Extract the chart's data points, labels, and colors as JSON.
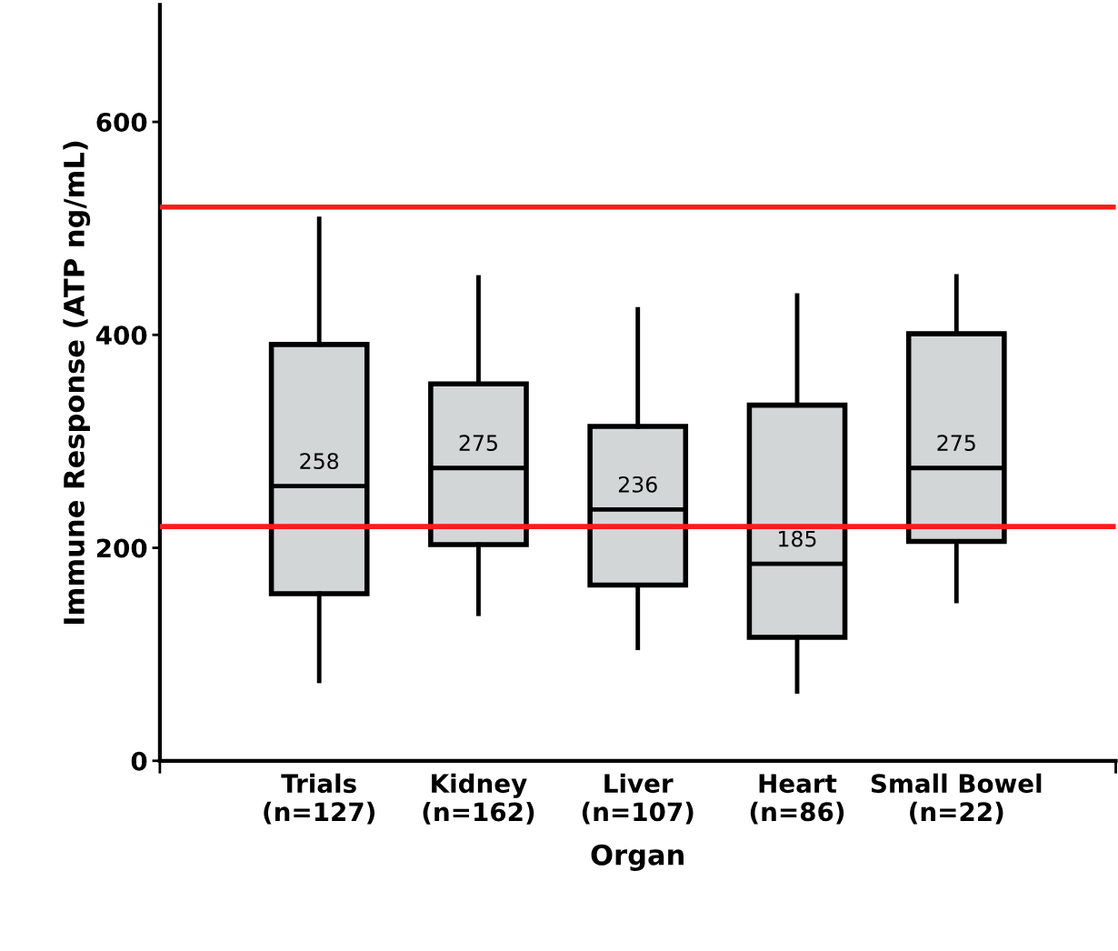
{
  "chart_data": {
    "type": "box",
    "xlabel": "Organ",
    "ylabel": "Immune Response (ATP ng/mL)",
    "categories": [
      "Trials\n(n=127)",
      "Kidney\n(n=162)",
      "Liver\n(n=107)",
      "Heart\n(n=86)",
      "Small Bowel\n(n=22)"
    ],
    "boxes": [
      {
        "low": 75,
        "q1": 157,
        "median": 258,
        "q3": 391,
        "high": 509
      },
      {
        "low": 138,
        "q1": 203,
        "median": 275,
        "q3": 354,
        "high": 454
      },
      {
        "low": 106,
        "q1": 165,
        "median": 236,
        "q3": 314,
        "high": 424
      },
      {
        "low": 65,
        "q1": 116,
        "median": 185,
        "q3": 334,
        "high": 437
      },
      {
        "low": 150,
        "q1": 206,
        "median": 275,
        "q3": 401,
        "high": 455
      }
    ],
    "color": "#d3d6d6",
    "value_labels": [
      "258",
      "275",
      "236",
      "185",
      "275"
    ],
    "ylim": [
      0,
      710
    ],
    "yticks": [
      0,
      200,
      400,
      600
    ],
    "grid": false,
    "legend": false,
    "ref_lines": [
      {
        "axis": "y",
        "value": 520,
        "color": "#ff1a1a"
      },
      {
        "axis": "y",
        "value": 220,
        "color": "#ff1a1a"
      }
    ]
  }
}
